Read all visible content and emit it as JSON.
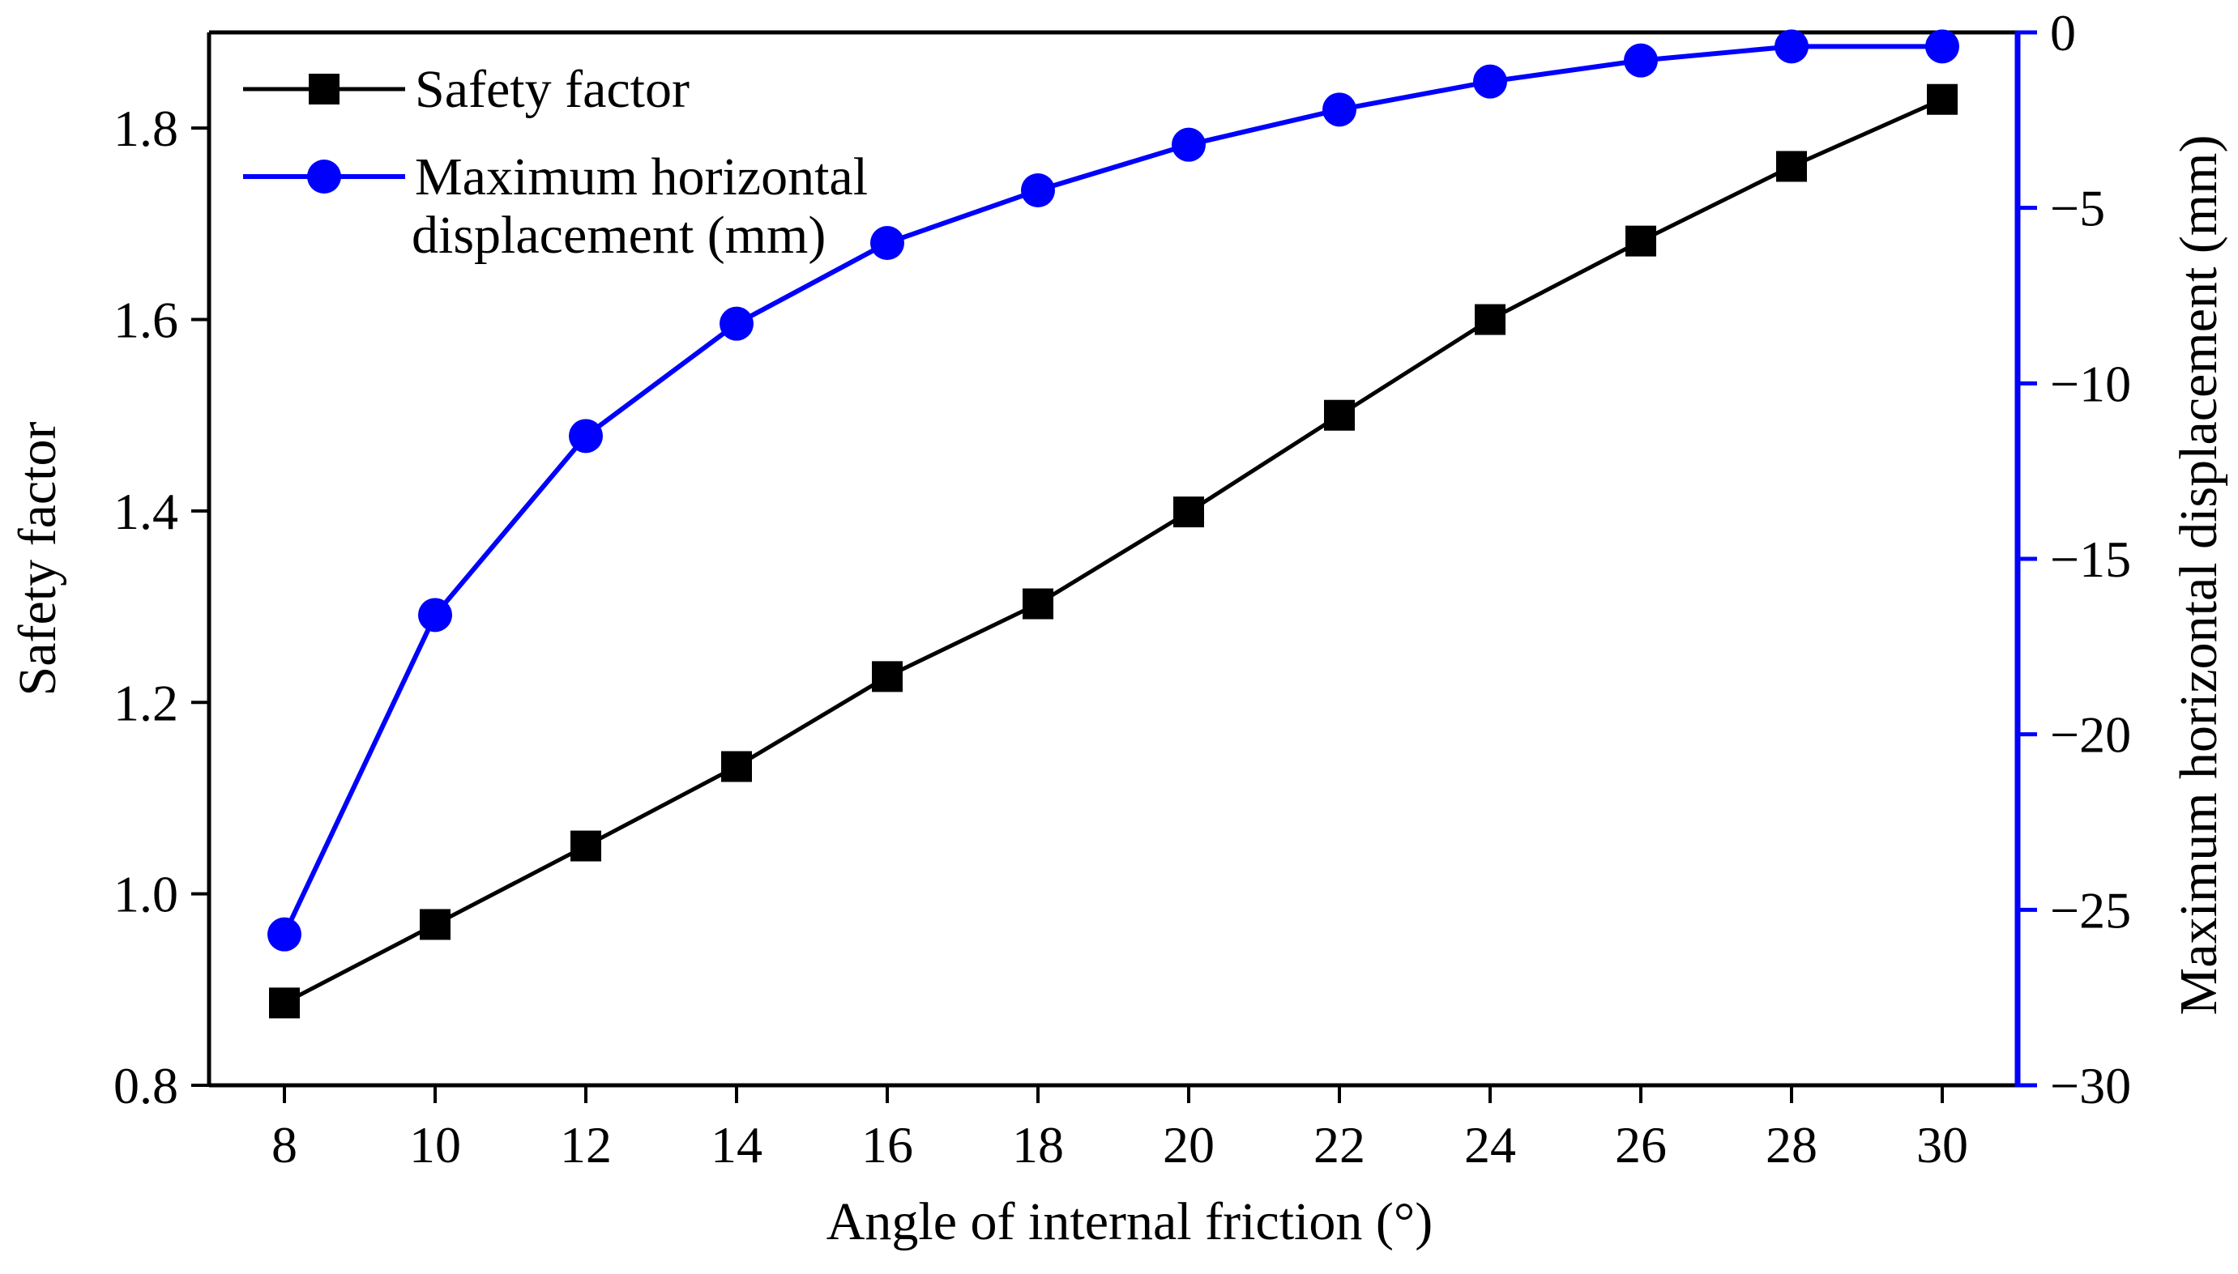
{
  "chart_data": {
    "type": "line",
    "xlabel": "Angle of internal friction (°)",
    "ylabel_left": "Safety factor",
    "ylabel_right": "Maximum horizontal displacement (mm)",
    "x": [
      8,
      10,
      12,
      14,
      16,
      18,
      20,
      22,
      24,
      26,
      28,
      30
    ],
    "xlim": [
      7,
      31
    ],
    "xticks": [
      "8",
      "10",
      "12",
      "14",
      "16",
      "18",
      "20",
      "22",
      "24",
      "26",
      "28",
      "30"
    ],
    "ylim_left": [
      0.8,
      1.9
    ],
    "yticks_left": [
      "0.8",
      "1.0",
      "1.2",
      "1.4",
      "1.6",
      "1.8"
    ],
    "ylim_right": [
      -30,
      0
    ],
    "yticks_right": [
      "0",
      "−5",
      "−10",
      "−15",
      "−20",
      "−25",
      "−30"
    ],
    "series": [
      {
        "name": "Safety factor",
        "axis": "left",
        "color": "#000000",
        "marker": "square",
        "values": [
          0.886,
          0.968,
          1.05,
          1.133,
          1.227,
          1.303,
          1.399,
          1.5,
          1.6,
          1.682,
          1.76,
          1.83
        ]
      },
      {
        "name_lines": [
          "Maximum horizontal",
          "displacement (mm)"
        ],
        "name": "Maximum horizontal displacement (mm)",
        "axis": "right",
        "color": "#0000ff",
        "marker": "circle",
        "values": [
          -25.7,
          -16.6,
          -11.5,
          -8.3,
          -6.0,
          -4.5,
          -3.2,
          -2.2,
          -1.4,
          -0.8,
          -0.4,
          -0.4
        ]
      }
    ],
    "legend_position": "top-left"
  }
}
